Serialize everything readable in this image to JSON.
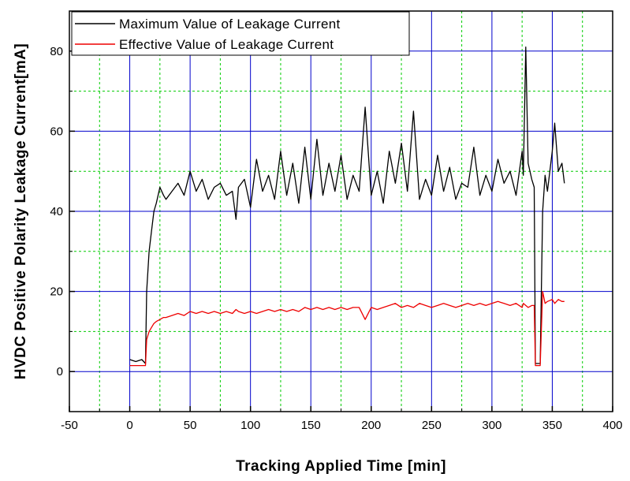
{
  "chart_data": {
    "type": "line",
    "title": "",
    "xlabel": "Tracking Applied Time [min]",
    "ylabel": "HVDC Positive Polarity Leakage Current[mA]",
    "xlim": [
      -50,
      400
    ],
    "ylim": [
      -10,
      90
    ],
    "xticks": [
      -50,
      0,
      50,
      100,
      150,
      200,
      250,
      300,
      350,
      400
    ],
    "yticks": [
      0,
      20,
      40,
      60,
      80
    ],
    "major_grid_color": "#0000cc",
    "minor_grid_color": "#00cc00",
    "grid": true,
    "legend_position": "top-left",
    "series": [
      {
        "name": "Maximum Value of Leakage Current",
        "color": "#000000",
        "x": [
          0,
          5,
          10,
          13,
          14,
          16,
          18,
          20,
          22,
          25,
          28,
          30,
          35,
          40,
          45,
          50,
          55,
          60,
          65,
          70,
          75,
          80,
          85,
          88,
          90,
          95,
          100,
          105,
          110,
          115,
          120,
          125,
          130,
          135,
          140,
          145,
          150,
          155,
          160,
          165,
          170,
          175,
          180,
          185,
          190,
          195,
          200,
          205,
          210,
          215,
          220,
          225,
          230,
          235,
          240,
          245,
          250,
          255,
          260,
          265,
          270,
          275,
          280,
          285,
          290,
          295,
          300,
          305,
          310,
          315,
          320,
          325,
          326,
          328,
          330,
          333,
          335,
          336,
          340,
          342,
          344,
          346,
          350,
          352,
          355,
          358,
          360
        ],
        "y": [
          3,
          2.5,
          3,
          2,
          20,
          30,
          35,
          40,
          42,
          46,
          44,
          43,
          45,
          47,
          44,
          50,
          45,
          48,
          43,
          46,
          47,
          44,
          45,
          38,
          46,
          48,
          41,
          53,
          45,
          49,
          43,
          55,
          44,
          52,
          42,
          56,
          43,
          58,
          44,
          52,
          45,
          54,
          43,
          49,
          45,
          66,
          44,
          50,
          42,
          55,
          47,
          57,
          45,
          65,
          43,
          48,
          44,
          54,
          45,
          51,
          43,
          47,
          46,
          56,
          44,
          49,
          45,
          53,
          47,
          50,
          44,
          55,
          49,
          81,
          52,
          48,
          46,
          2,
          2,
          40,
          49,
          45,
          55,
          62,
          50,
          52,
          47
        ]
      },
      {
        "name": "Effective Value of Leakage Current",
        "color": "#ee0000",
        "x": [
          0,
          5,
          10,
          13,
          14,
          16,
          18,
          20,
          22,
          25,
          28,
          30,
          35,
          40,
          45,
          50,
          55,
          60,
          65,
          70,
          75,
          80,
          85,
          88,
          90,
          95,
          100,
          105,
          110,
          115,
          120,
          125,
          130,
          135,
          140,
          145,
          150,
          155,
          160,
          165,
          170,
          175,
          180,
          185,
          190,
          195,
          200,
          205,
          210,
          215,
          220,
          225,
          230,
          235,
          240,
          245,
          250,
          255,
          260,
          265,
          270,
          275,
          280,
          285,
          290,
          295,
          300,
          305,
          310,
          315,
          320,
          325,
          326,
          328,
          330,
          333,
          335,
          336,
          340,
          342,
          344,
          346,
          350,
          352,
          355,
          358,
          360
        ],
        "y": [
          1.5,
          1.5,
          1.5,
          1.5,
          8,
          10,
          11,
          12,
          12.5,
          13,
          13.5,
          13.5,
          14,
          14.5,
          14,
          15,
          14.5,
          15,
          14.5,
          15,
          14.5,
          15,
          14.5,
          15.5,
          15,
          14.5,
          15,
          14.5,
          15,
          15.5,
          15,
          15.5,
          15,
          15.5,
          15,
          16,
          15.5,
          16,
          15.5,
          16,
          15.5,
          16,
          15.5,
          16,
          16,
          13,
          16,
          15.5,
          16,
          16.5,
          17,
          16,
          16.5,
          16,
          17,
          16.5,
          16,
          16.5,
          17,
          16.5,
          16,
          16.5,
          17,
          16.5,
          17,
          16.5,
          17,
          17.5,
          17,
          16.5,
          17,
          16,
          17,
          16.5,
          16,
          16.5,
          16.5,
          1.5,
          1.5,
          20,
          17,
          17.5,
          18,
          17,
          18,
          17.5,
          17.5
        ]
      }
    ]
  }
}
